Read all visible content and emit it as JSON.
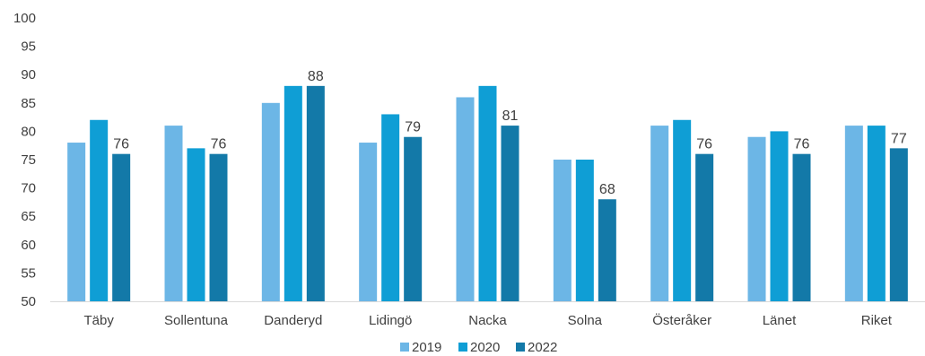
{
  "chart_data": {
    "type": "bar",
    "title": "",
    "xlabel": "",
    "ylabel": "",
    "ylim": [
      50,
      100
    ],
    "yticks": [
      50,
      55,
      60,
      65,
      70,
      75,
      80,
      85,
      90,
      95,
      100
    ],
    "grid": false,
    "legend_position": "bottom",
    "categories": [
      "Täby",
      "Sollentuna",
      "Danderyd",
      "Lidingö",
      "Nacka",
      "Solna",
      "Österåker",
      "Länet",
      "Riket"
    ],
    "series": [
      {
        "name": "2019",
        "color": "#6CB6E6",
        "values": [
          78,
          81,
          85,
          78,
          86,
          75,
          81,
          79,
          81
        ]
      },
      {
        "name": "2020",
        "color": "#0F9ED5",
        "values": [
          82,
          77,
          88,
          83,
          88,
          75,
          82,
          80,
          81
        ]
      },
      {
        "name": "2022",
        "color": "#1379A8",
        "values": [
          76,
          76,
          88,
          79,
          81,
          68,
          76,
          76,
          77
        ]
      }
    ],
    "data_labels_series": "2022",
    "data_labels": [
      "76",
      "76",
      "88",
      "79",
      "81",
      "68",
      "76",
      "76",
      "77"
    ]
  }
}
